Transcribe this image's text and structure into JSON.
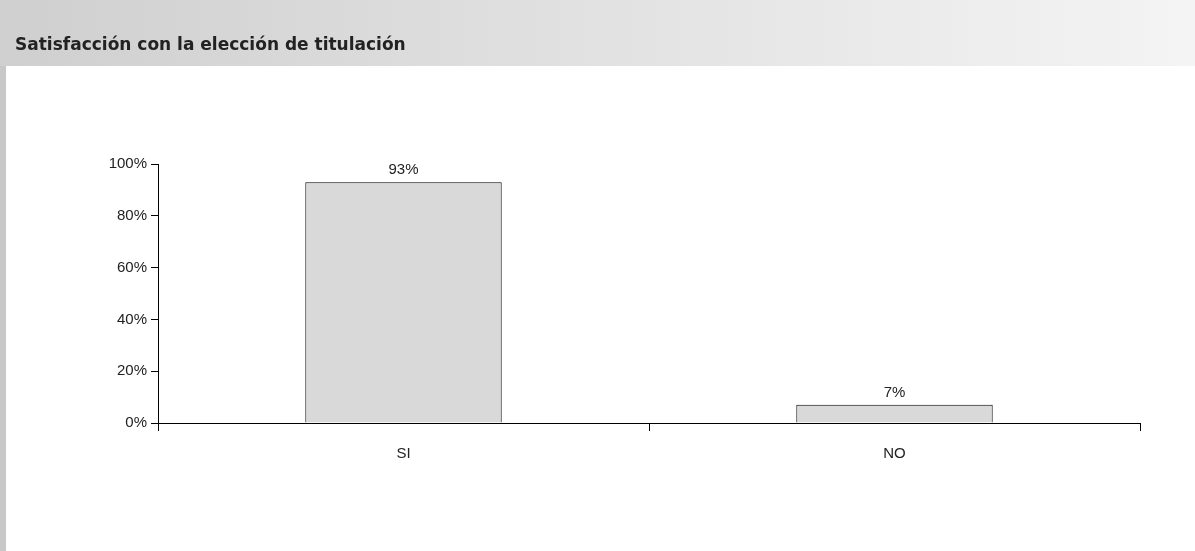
{
  "chart_data": {
    "type": "bar",
    "title": "Satisfacción con la elección de titulación",
    "categories": [
      "SI",
      "NO"
    ],
    "values": [
      93,
      7
    ],
    "value_labels": [
      "93%",
      "7%"
    ],
    "color": "#d9d9d9",
    "ylim": [
      0,
      100
    ],
    "yticks": [
      {
        "value": 0,
        "label": "0%"
      },
      {
        "value": 20,
        "label": "20%"
      },
      {
        "value": 40,
        "label": "40%"
      },
      {
        "value": 60,
        "label": "60%"
      },
      {
        "value": 80,
        "label": "80%"
      },
      {
        "value": 100,
        "label": "100%"
      }
    ],
    "grid": false,
    "legend": false
  }
}
